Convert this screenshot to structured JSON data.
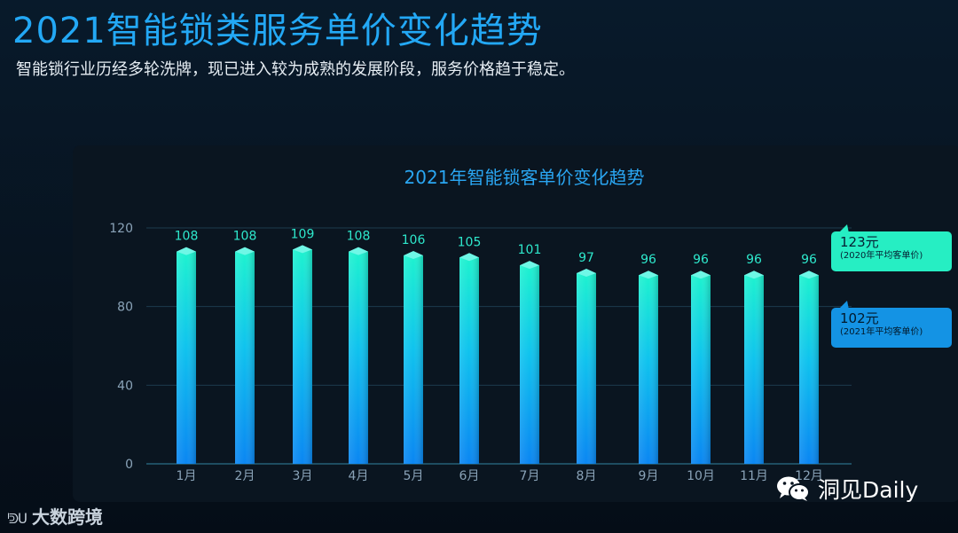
{
  "header": {
    "title": "2021智能锁类服务单价变化趋势",
    "subtitle": "智能锁行业历经多轮洗牌，现已进入较为成熟的发展阶段，服务价格趋于稳定。"
  },
  "chart_data": {
    "type": "bar",
    "title": "2021年智能锁客单价变化趋势",
    "categories": [
      "1月",
      "2月",
      "3月",
      "4月",
      "5月",
      "6月",
      "7月",
      "8月",
      "9月",
      "10月",
      "11月",
      "12月"
    ],
    "values": [
      108,
      108,
      109,
      108,
      106,
      105,
      101,
      97,
      96,
      96,
      96,
      96
    ],
    "data_labels": [
      "108",
      "108",
      "109",
      "108",
      "106",
      "105",
      "101",
      "97",
      "96",
      "96",
      "96",
      "96"
    ],
    "y_ticks": [
      "0",
      "40",
      "80",
      "120"
    ],
    "ylim": [
      0,
      120
    ],
    "grid": "horizontal",
    "reference_lines": [
      {
        "value_label": "123元",
        "description": "(2020年平均客单价)",
        "color": "#26eec3"
      },
      {
        "value_label": "102元",
        "description": "(2021年平均客单价)",
        "color": "#1493e4"
      }
    ]
  },
  "watermarks": {
    "left": "大数跨境",
    "left_logo": "ᑊᕲᑌ",
    "right": "洞见Daily"
  },
  "colors": {
    "title": "#23a8f5",
    "bar_top": "#1df2cf",
    "bar_bottom": "#0a86f2",
    "background": "#07131f"
  }
}
